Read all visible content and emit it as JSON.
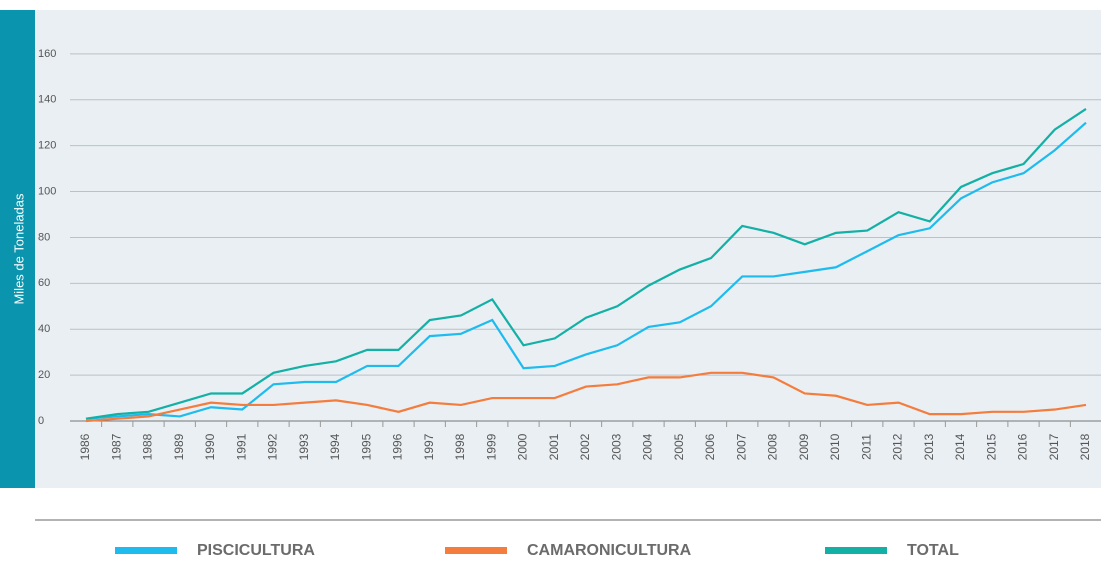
{
  "chart_data": {
    "type": "line",
    "y_label": "Miles de Toneladas",
    "categories": [
      "1986",
      "1987",
      "1988",
      "1989",
      "1990",
      "1991",
      "1992",
      "1993",
      "1994",
      "1995",
      "1996",
      "1997",
      "1998",
      "1999",
      "2000",
      "2001",
      "2002",
      "2003",
      "2004",
      "2005",
      "2006",
      "2007",
      "2008",
      "2009",
      "2010",
      "2011",
      "2012",
      "2013",
      "2014",
      "2015",
      "2016",
      "2017",
      "2018"
    ],
    "series": [
      {
        "name": "PISCICULTURA",
        "color": "#1ebbee",
        "values": [
          1,
          2,
          3,
          2,
          6,
          5,
          16,
          17,
          17,
          24,
          24,
          37,
          38,
          44,
          23,
          24,
          29,
          33,
          41,
          43,
          50,
          63,
          63,
          65,
          67,
          74,
          81,
          84,
          97,
          104,
          108,
          118,
          130
        ]
      },
      {
        "name": "CAMARONICULTURA",
        "color": "#f47c3c",
        "values": [
          0,
          1,
          2,
          5,
          8,
          7,
          7,
          8,
          9,
          7,
          4,
          8,
          7,
          10,
          10,
          10,
          15,
          16,
          19,
          19,
          21,
          21,
          19,
          12,
          11,
          7,
          8,
          3,
          3,
          4,
          4,
          5,
          7
        ]
      },
      {
        "name": "TOTAL",
        "color": "#13b0a6",
        "values": [
          1,
          3,
          4,
          8,
          12,
          12,
          21,
          24,
          26,
          31,
          31,
          44,
          46,
          53,
          33,
          36,
          45,
          50,
          59,
          66,
          71,
          85,
          82,
          77,
          82,
          83,
          91,
          87,
          102,
          108,
          112,
          127,
          136
        ]
      }
    ],
    "ylim": [
      0,
      180
    ],
    "yticks": [
      0,
      20,
      40,
      60,
      80,
      100,
      120,
      140,
      160
    ],
    "grid": true
  }
}
